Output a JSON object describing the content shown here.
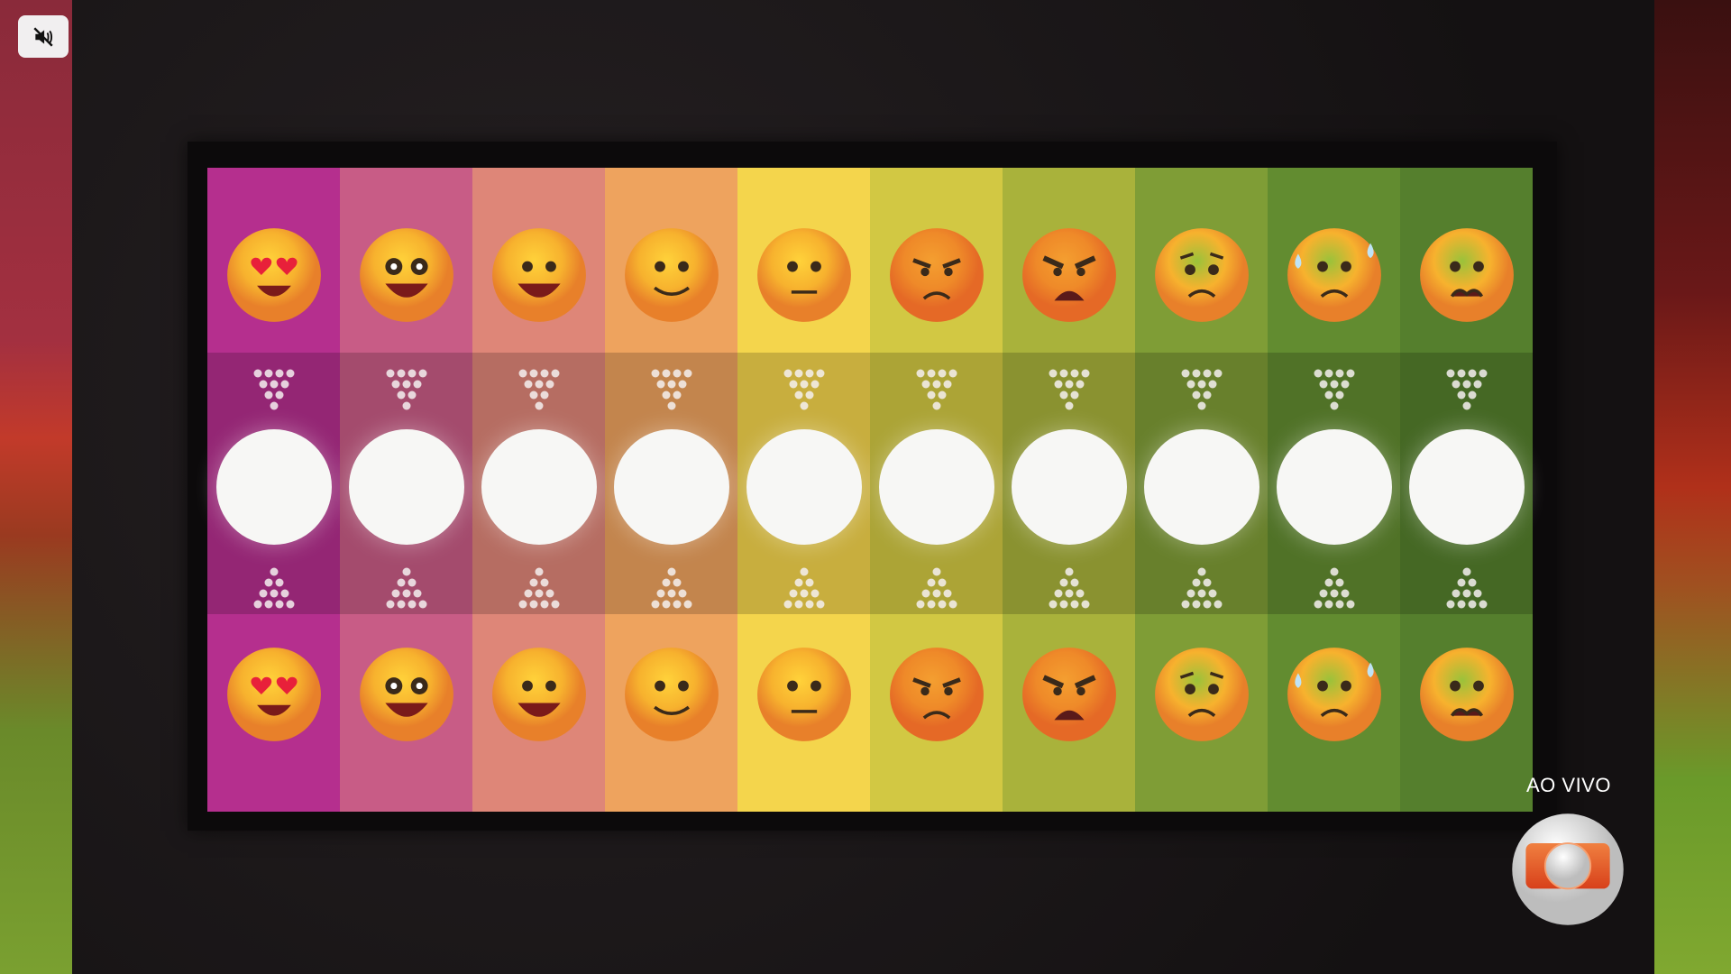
{
  "player": {
    "mute_icon": "speaker-muted-icon",
    "live_label": "AO VIVO",
    "channel_logo": "globo-logo"
  },
  "board": {
    "columns": [
      {
        "emoji": "heart-eyes",
        "color": "#b52f8e"
      },
      {
        "emoji": "star-struck",
        "color": "#c85c86"
      },
      {
        "emoji": "grinning",
        "color": "#de8678"
      },
      {
        "emoji": "slightly-smiling",
        "color": "#eea35e"
      },
      {
        "emoji": "neutral",
        "color": "#f4d54c"
      },
      {
        "emoji": "angry",
        "color": "#d2c843"
      },
      {
        "emoji": "furious",
        "color": "#a9b23b"
      },
      {
        "emoji": "worried",
        "color": "#7f9d36"
      },
      {
        "emoji": "anxious-sweat",
        "color": "#628c30"
      },
      {
        "emoji": "nauseated",
        "color": "#557f2d"
      }
    ]
  }
}
